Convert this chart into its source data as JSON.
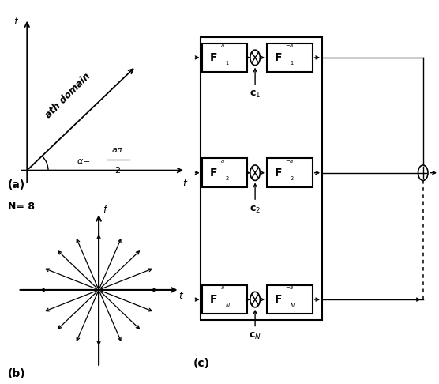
{
  "bg_color": "#ffffff",
  "panel_a": {
    "label": "(a)",
    "f_label": "f",
    "t_label": "t",
    "domain_label": "ath domain",
    "alpha_eq": "α =",
    "alpha_num": "aπ",
    "alpha_den": "2"
  },
  "panel_b": {
    "N": 8,
    "label": "(b)",
    "f_label": "f",
    "t_label": "t",
    "N_label": "N= 8"
  },
  "panel_c": {
    "label": "(c)",
    "rows": [
      "1",
      "2",
      "N"
    ],
    "c_labels": [
      "c_1",
      "c_2",
      "c_N"
    ]
  }
}
